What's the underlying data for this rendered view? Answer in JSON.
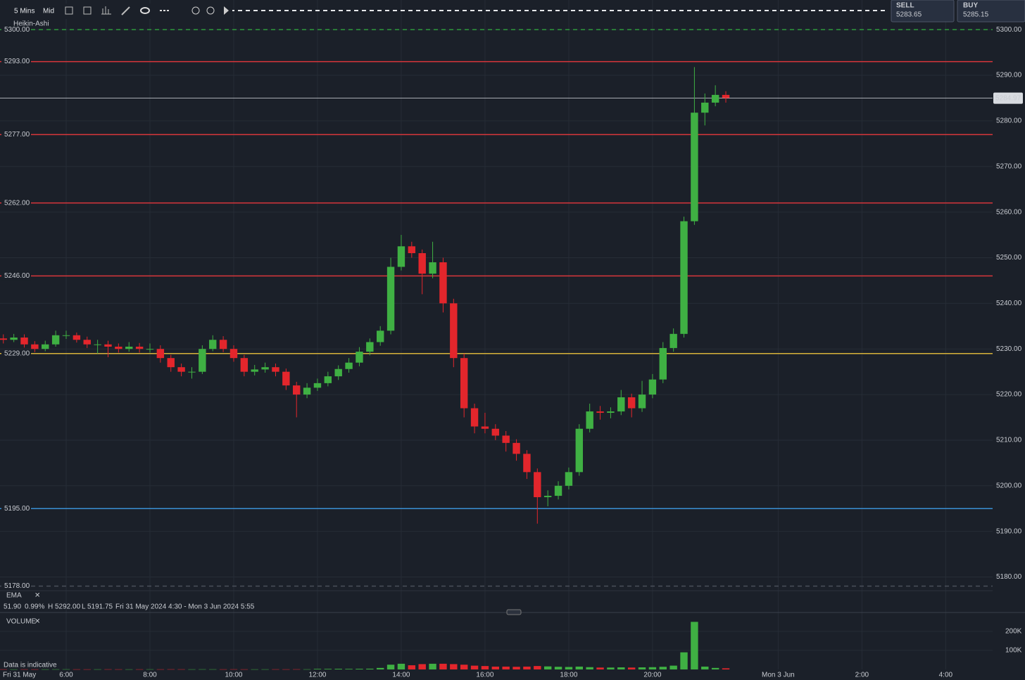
{
  "toolbar": {
    "interval": "5 Mins",
    "price_type": "Mid",
    "chart_style": "Heikin-Ashi"
  },
  "quotes": {
    "sell_label": "SELL",
    "sell": 5283.65,
    "buy_label": "BUY",
    "buy": 5285.15
  },
  "indicator_row": {
    "name": "EMA",
    "value": "51.90",
    "change": "0.99%",
    "high": "H 5292.00",
    "low": "L 5191.75",
    "range": "Fri 31 May 2024 4:30 - Mon 3 Jun 2024 5:55"
  },
  "volume_panel": {
    "name": "VOLUME",
    "note": "Data is indicative"
  },
  "chart_data": {
    "type": "candlestick",
    "x_start_label": "Fri 31 May",
    "x": [
      4.5,
      4.75,
      5,
      5.25,
      5.5,
      5.75,
      6,
      6.25,
      6.5,
      6.75,
      7,
      7.25,
      7.5,
      7.75,
      8,
      8.25,
      8.5,
      8.75,
      9,
      9.25,
      9.5,
      9.75,
      10,
      10.25,
      10.5,
      10.75,
      11,
      11.25,
      11.5,
      11.75,
      12,
      12.25,
      12.5,
      12.75,
      13,
      13.25,
      13.5,
      13.75,
      14,
      14.25,
      14.5,
      14.75,
      15,
      15.25,
      15.5,
      15.75,
      16,
      16.25,
      16.5,
      16.75,
      17,
      17.25,
      17.5,
      17.75,
      18,
      18.25,
      18.5,
      18.75,
      19,
      19.25,
      19.5,
      19.75,
      20,
      20.25,
      20.5,
      20.75,
      21,
      21.25,
      21.5,
      21.75
    ],
    "open": [
      5232.3,
      5232,
      5232.5,
      5231,
      5230,
      5231,
      5233,
      5233,
      5232,
      5231,
      5231,
      5230.5,
      5230,
      5230.5,
      5230,
      5230,
      5228,
      5226,
      5225,
      5225,
      5230,
      5232,
      5230,
      5228,
      5225,
      5225.5,
      5226,
      5225,
      5222,
      5220,
      5221.5,
      5222.5,
      5224,
      5225.6,
      5227,
      5229.4,
      5231.5,
      5234,
      5248,
      5252.5,
      5251,
      5246.5,
      5249,
      5240,
      5228,
      5217,
      5213,
      5212.5,
      5211,
      5209.4,
      5207,
      5203,
      5197.5,
      5197.8,
      5200,
      5203,
      5212.5,
      5216.3,
      5216,
      5216.3,
      5219.4,
      5217,
      5220,
      5223.3,
      5230.2,
      5233.3,
      5258,
      5281.8,
      5284,
      5285.7
    ],
    "high": [
      5233.2,
      5233.3,
      5233.2,
      5231.7,
      5231.8,
      5234,
      5234,
      5233.6,
      5232.7,
      5232,
      5231.8,
      5231.2,
      5231.5,
      5231.3,
      5231.2,
      5230.8,
      5228.7,
      5226.8,
      5226,
      5230.8,
      5233,
      5232.8,
      5230.8,
      5228.7,
      5226.5,
      5227,
      5226.8,
      5225.7,
      5222.8,
      5222.5,
      5223.5,
      5225,
      5226.4,
      5228,
      5230.4,
      5232.3,
      5235,
      5250,
      5255,
      5253.5,
      5251.8,
      5253.5,
      5250,
      5241,
      5229,
      5218,
      5216,
      5213.5,
      5212,
      5210.2,
      5207.8,
      5203.8,
      5199,
      5201,
      5204,
      5213.5,
      5218,
      5217.5,
      5217.2,
      5221,
      5220.2,
      5223,
      5224.5,
      5231.5,
      5234.5,
      5259,
      5291.8,
      5286,
      5287.8,
      5286.5
    ],
    "low": [
      5231.2,
      5231.5,
      5230.3,
      5229.3,
      5229.5,
      5230.5,
      5232.2,
      5231.4,
      5230.2,
      5229,
      5228.2,
      5229.2,
      5229.4,
      5229.2,
      5229.2,
      5227,
      5225,
      5224,
      5223.5,
      5224.5,
      5229.5,
      5229.3,
      5227.2,
      5224,
      5224.2,
      5224.8,
      5224,
      5221,
      5215,
      5219.2,
      5220.8,
      5221.8,
      5223.2,
      5224.8,
      5226.2,
      5228.6,
      5230.7,
      5233.2,
      5247.2,
      5250,
      5242,
      5245.5,
      5238,
      5226,
      5215,
      5211.5,
      5211.5,
      5210,
      5207.5,
      5205.5,
      5201.5,
      5191.7,
      5195.5,
      5197,
      5199.2,
      5202.2,
      5211.7,
      5214.5,
      5214.8,
      5215.5,
      5215,
      5216.2,
      5219.2,
      5222.5,
      5229.4,
      5232.5,
      5257.2,
      5279,
      5283.2,
      5284
    ],
    "close": [
      5232,
      5232.5,
      5231,
      5230,
      5231,
      5233,
      5233,
      5232,
      5231,
      5231,
      5230.5,
      5230,
      5230.5,
      5230,
      5230,
      5228,
      5226,
      5225,
      5225,
      5230,
      5232,
      5230,
      5228,
      5225,
      5225.5,
      5226,
      5225,
      5222,
      5220,
      5221.5,
      5222.5,
      5224,
      5225.6,
      5227,
      5229.4,
      5231.5,
      5234,
      5248,
      5252.5,
      5251,
      5246.5,
      5249,
      5240,
      5228,
      5217,
      5213,
      5212.5,
      5211,
      5209.4,
      5207,
      5203,
      5197.5,
      5197.8,
      5200,
      5203,
      5212.5,
      5216.3,
      5216,
      5216.3,
      5219.4,
      5217,
      5220,
      5223.3,
      5230.2,
      5233.3,
      5258,
      5281.8,
      5284,
      5285.7,
      5285
    ],
    "up_color": "#3fb043",
    "down_color": "#e3262c",
    "xlim": [
      4.42,
      28.12
    ],
    "xticks": [
      {
        "value": 6,
        "label": "6:00"
      },
      {
        "value": 8,
        "label": "8:00"
      },
      {
        "value": 10,
        "label": "10:00"
      },
      {
        "value": 12,
        "label": "12:00"
      },
      {
        "value": 14,
        "label": "14:00"
      },
      {
        "value": 16,
        "label": "16:00"
      },
      {
        "value": 18,
        "label": "18:00"
      },
      {
        "value": 20,
        "label": "20:00"
      },
      {
        "value": 23,
        "label": "Mon 3 Jun"
      },
      {
        "value": 25,
        "label": "2:00"
      },
      {
        "value": 27,
        "label": "4:00"
      }
    ],
    "ylim": [
      5177,
      5306.5
    ],
    "yticks": [
      {
        "value": 5180,
        "label": "5180.00"
      },
      {
        "value": 5190,
        "label": "5190.00"
      },
      {
        "value": 5200,
        "label": "5200.00"
      },
      {
        "value": 5210,
        "label": "5210.00"
      },
      {
        "value": 5220,
        "label": "5220.00"
      },
      {
        "value": 5230,
        "label": "5230.00"
      },
      {
        "value": 5240,
        "label": "5240.00"
      },
      {
        "value": 5250,
        "label": "5250.00"
      },
      {
        "value": 5260,
        "label": "5260.00"
      },
      {
        "value": 5270,
        "label": "5270.00"
      },
      {
        "value": 5280,
        "label": "5280.00"
      },
      {
        "value": 5290,
        "label": "5290.00"
      },
      {
        "value": 5300,
        "label": "5300.00"
      }
    ],
    "grid": true,
    "levels": [
      {
        "value": {
          "value": 5300,
          "label": "5300.00"
        },
        "color": "#2f9a3c",
        "dashed": true
      },
      {
        "value": {
          "value": 5293,
          "label": "5293.00"
        },
        "color": "#d9363b",
        "dashed": false
      },
      {
        "value": {
          "value": 5277,
          "label": "5277.00"
        },
        "color": "#d9363b",
        "dashed": false
      },
      {
        "value": {
          "value": 5262,
          "label": "5262.00"
        },
        "color": "#d9363b",
        "dashed": false
      },
      {
        "value": {
          "value": 5246,
          "label": "5246.00"
        },
        "color": "#d9363b",
        "dashed": false
      },
      {
        "value": {
          "value": 5229,
          "label": "5229.00"
        },
        "color": "#d8b33a",
        "dashed": false
      },
      {
        "value": {
          "value": 5195,
          "label": "5195.00"
        },
        "color": "#3a8fd4",
        "dashed": false
      },
      {
        "value": {
          "value": 5178,
          "label": "5178.00"
        },
        "color": "#4a4f5a",
        "dashed": true
      }
    ],
    "current_price": 5284.97,
    "current_price_color": "#d8dbe0",
    "volume": {
      "values": [
        800,
        700,
        900,
        800,
        700,
        900,
        1000,
        800,
        700,
        800,
        900,
        800,
        700,
        800,
        900,
        800,
        1000,
        900,
        800,
        1000,
        900,
        800,
        900,
        800,
        700,
        800,
        900,
        800,
        1000,
        900,
        3000,
        3000,
        3500,
        3000,
        3500,
        4000,
        8000,
        25000,
        30000,
        22000,
        28000,
        30000,
        30000,
        28000,
        25000,
        20000,
        18000,
        15000,
        15000,
        14000,
        15000,
        18000,
        16000,
        14000,
        13000,
        15000,
        12000,
        10000,
        10000,
        11000,
        10000,
        11000,
        12000,
        14000,
        20000,
        90000,
        250000,
        15000,
        8000,
        6000
      ],
      "ylim": [
        0,
        266000
      ],
      "yticks": [
        {
          "value": 100000,
          "label": "100K"
        },
        {
          "value": 200000,
          "label": "200K"
        }
      ]
    }
  }
}
